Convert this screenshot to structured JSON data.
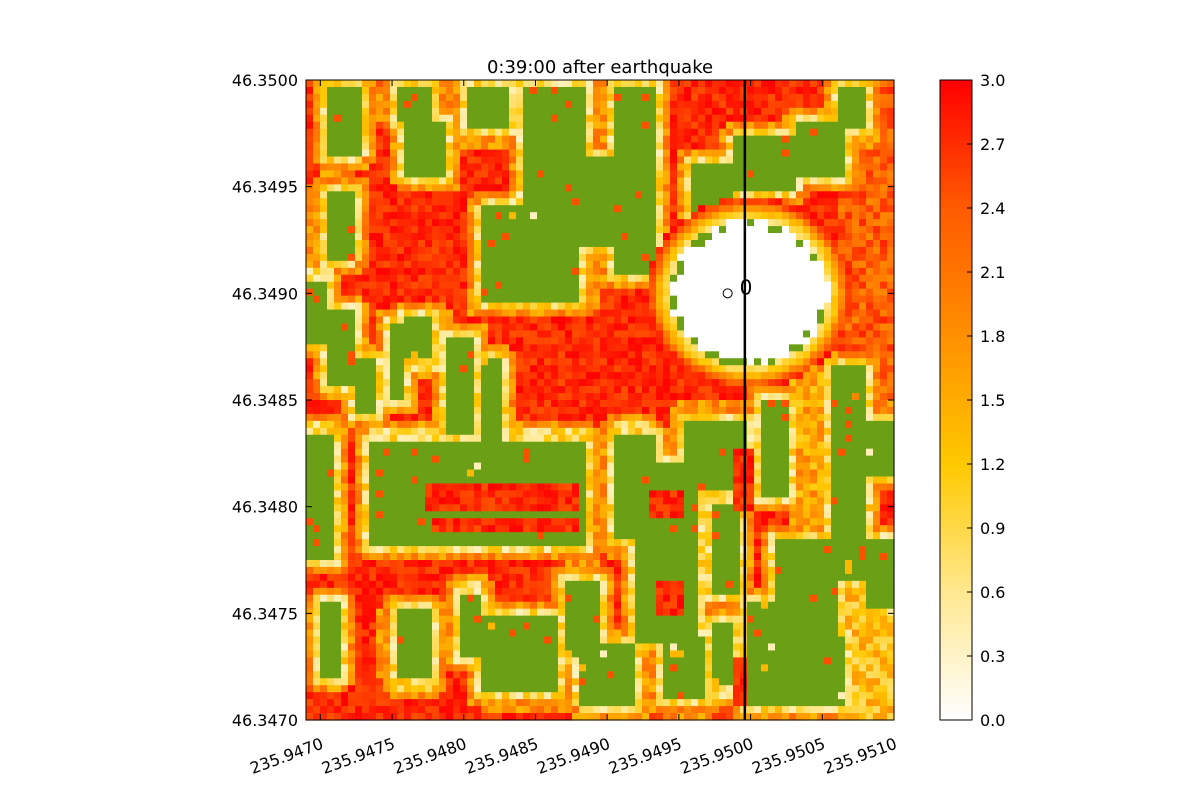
{
  "chart_data": {
    "type": "heatmap",
    "title": "0:39:00 after earthquake",
    "xlabel": "",
    "ylabel": "",
    "xlim": [
      235.9469,
      235.951
    ],
    "ylim": [
      46.347,
      46.35
    ],
    "x_ticks": [
      235.947,
      235.9475,
      235.948,
      235.9485,
      235.949,
      235.9495,
      235.95,
      235.9505,
      235.951
    ],
    "x_tick_labels": [
      "235.9470",
      "235.9475",
      "235.9480",
      "235.9485",
      "235.9490",
      "235.9495",
      "235.9500",
      "235.9505",
      "235.9510"
    ],
    "y_ticks": [
      46.347,
      46.3475,
      46.348,
      46.3485,
      46.349,
      46.3495,
      46.35
    ],
    "y_tick_labels": [
      "46.3470",
      "46.3475",
      "46.3480",
      "46.3485",
      "46.3490",
      "46.3495",
      "46.3500"
    ],
    "colorbar": {
      "range": [
        0,
        3.0
      ],
      "ticks": [
        0.0,
        0.3,
        0.6,
        0.9,
        1.2,
        1.5,
        1.8,
        2.1,
        2.4,
        2.7,
        3.0
      ],
      "tick_labels": [
        "0.0",
        "0.3",
        "0.6",
        "0.9",
        "1.2",
        "1.5",
        "1.8",
        "2.1",
        "2.4",
        "2.7",
        "3.0"
      ],
      "colors": [
        "#ffffff",
        "#ffe890",
        "#ffc800",
        "#ff9000",
        "#ff5a00",
        "#ff0000"
      ]
    },
    "land_color": "#6a9f16",
    "vertical_line": {
      "x": 235.94996,
      "color": "#000000"
    },
    "markers": [
      {
        "label": "0",
        "x": 235.94984,
        "y": 46.349
      }
    ],
    "features": [
      {
        "kind": "dry_circle",
        "cx": 235.94999,
        "cy": 46.349,
        "r_x": 0.00064,
        "r_y": 0.0004
      }
    ],
    "grid": false
  }
}
